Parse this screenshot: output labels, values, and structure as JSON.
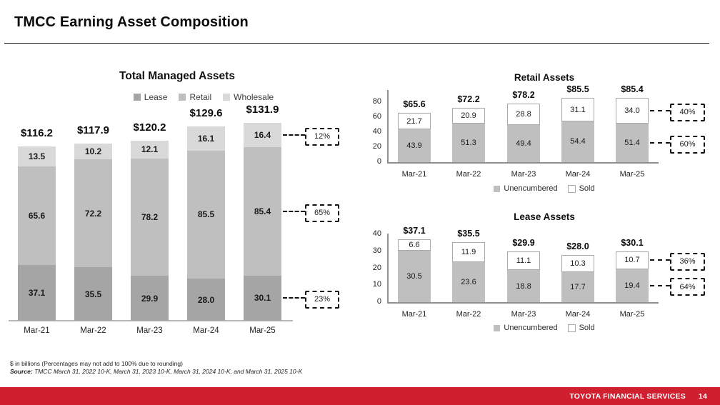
{
  "header": {
    "title": "TMCC Earning Asset Composition"
  },
  "footnotes": {
    "line1": "$ in billions (Percentages may not add to 100% due to rounding)",
    "source_label": "Source:",
    "source_text": " TMCC March 31, 2022 10-K, March 31, 2023 10-K, March 31, 2024 10-K, and March 31, 2025 10-K"
  },
  "footer": {
    "brand": "TOYOTA FINANCIAL SERVICES",
    "page": "14",
    "color": "#d01f2f"
  },
  "colors": {
    "lease": "#a5a5a5",
    "retail": "#bfbfbf",
    "wholesale": "#d9d9d9",
    "unencumbered": "#bfbfbf",
    "sold": "#ffffff",
    "sold_border": "#a9a9a9",
    "axis": "#8f8f8f",
    "callout": "#121212"
  },
  "chart_data": [
    {
      "id": "total-managed-assets",
      "type": "bar",
      "stacked": true,
      "title": "Total Managed Assets",
      "categories": [
        "Mar-21",
        "Mar-22",
        "Mar-23",
        "Mar-24",
        "Mar-25"
      ],
      "series": [
        {
          "name": "Lease",
          "colorKey": "lease",
          "values": [
            37.1,
            35.5,
            29.9,
            28.0,
            30.1
          ],
          "labels": [
            "37.1",
            "35.5",
            "29.9",
            "28.0",
            "30.1"
          ],
          "callout": "23%"
        },
        {
          "name": "Retail",
          "colorKey": "retail",
          "values": [
            65.6,
            72.2,
            78.2,
            85.5,
            85.4
          ],
          "labels": [
            "65.6",
            "72.2",
            "78.2",
            "85.5",
            "85.4"
          ],
          "callout": "65%"
        },
        {
          "name": "Wholesale",
          "colorKey": "wholesale",
          "values": [
            13.5,
            10.2,
            12.1,
            16.1,
            16.4
          ],
          "labels": [
            "13.5",
            "10.2",
            "12.1",
            "16.1",
            "16.4"
          ],
          "callout": "12%"
        }
      ],
      "totals": [
        "$116.2",
        "$117.9",
        "$120.2",
        "$129.6",
        "$131.9"
      ],
      "legend": [
        "Lease",
        "Retail",
        "Wholesale"
      ],
      "y_axis_visible": false
    },
    {
      "id": "retail-assets",
      "type": "bar",
      "stacked": true,
      "title": "Retail Assets",
      "categories": [
        "Mar-21",
        "Mar-22",
        "Mar-23",
        "Mar-24",
        "Mar-25"
      ],
      "series": [
        {
          "name": "Unencumbered",
          "colorKey": "unencumbered",
          "values": [
            43.9,
            51.3,
            49.4,
            54.4,
            51.4
          ],
          "labels": [
            "43.9",
            "51.3",
            "49.4",
            "54.4",
            "51.4"
          ],
          "callout": "60%"
        },
        {
          "name": "Sold",
          "colorKey": "sold",
          "values": [
            21.7,
            20.9,
            28.8,
            31.1,
            34.0
          ],
          "labels": [
            "21.7",
            "20.9",
            "28.8",
            "31.1",
            "34.0"
          ],
          "callout": "40%"
        }
      ],
      "totals": [
        "$65.6",
        "$72.2",
        "$78.2",
        "$85.5",
        "$85.4"
      ],
      "legend": [
        "Unencumbered",
        "Sold"
      ],
      "ylim": [
        0,
        80
      ],
      "yticks": [
        0,
        20,
        40,
        60,
        80
      ]
    },
    {
      "id": "lease-assets",
      "type": "bar",
      "stacked": true,
      "title": "Lease Assets",
      "categories": [
        "Mar-21",
        "Mar-22",
        "Mar-23",
        "Mar-24",
        "Mar-25"
      ],
      "series": [
        {
          "name": "Unencumbered",
          "colorKey": "unencumbered",
          "values": [
            30.5,
            23.6,
            18.8,
            17.7,
            19.4
          ],
          "labels": [
            "30.5",
            "23.6",
            "18.8",
            "17.7",
            "19.4"
          ],
          "callout": "64%"
        },
        {
          "name": "Sold",
          "colorKey": "sold",
          "values": [
            6.6,
            11.9,
            11.1,
            10.3,
            10.7
          ],
          "labels": [
            "6.6",
            "11.9",
            "11.1",
            "10.3",
            "10.7"
          ],
          "callout": "36%"
        }
      ],
      "totals": [
        "$37.1",
        "$35.5",
        "$29.9",
        "$28.0",
        "$30.1"
      ],
      "legend": [
        "Unencumbered",
        "Sold"
      ],
      "ylim": [
        0,
        40
      ],
      "yticks": [
        0,
        10,
        20,
        30,
        40
      ]
    }
  ]
}
